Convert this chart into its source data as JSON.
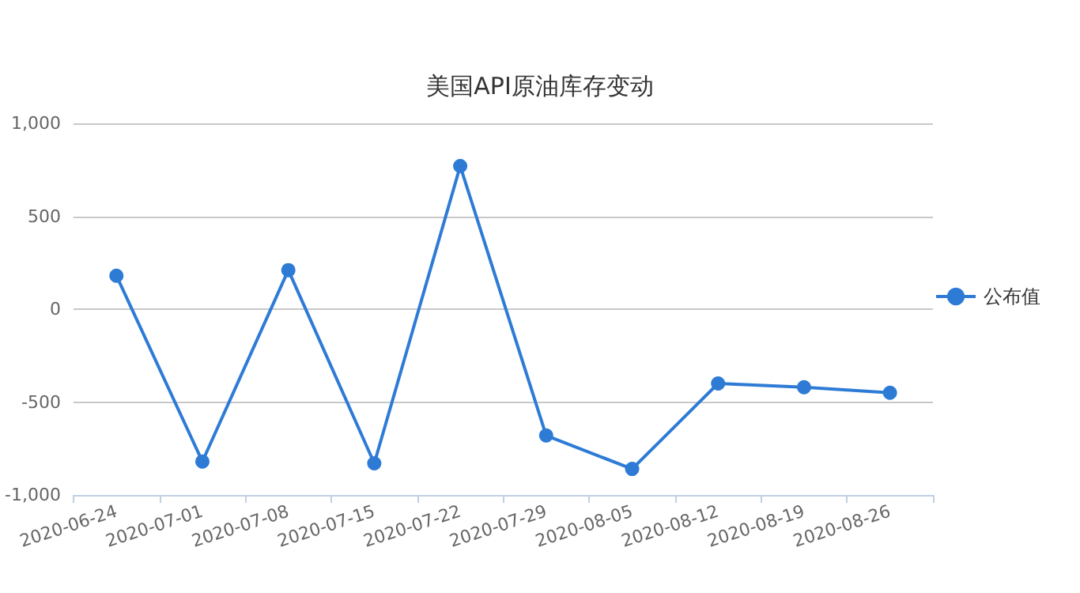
{
  "chart_data": {
    "type": "line",
    "title": "美国API原油库存变动",
    "categories": [
      "2020-06-24",
      "2020-07-01",
      "2020-07-08",
      "2020-07-15",
      "2020-07-22",
      "2020-07-29",
      "2020-08-05",
      "2020-08-12",
      "2020-08-19",
      "2020-08-26"
    ],
    "series": [
      {
        "name": "公布值",
        "color": "#2e7bd6",
        "values": [
          180,
          -820,
          210,
          -830,
          770,
          -680,
          -860,
          -400,
          -420,
          -450
        ]
      }
    ],
    "ylim": [
      -1000,
      1000
    ],
    "yticks": [
      {
        "value": -1000,
        "label": "-1,000"
      },
      -500,
      0,
      500,
      {
        "value": 1000,
        "label": "1,000"
      }
    ],
    "grid": "y",
    "legend": "right",
    "marker": "circle",
    "line_style": "solid"
  }
}
